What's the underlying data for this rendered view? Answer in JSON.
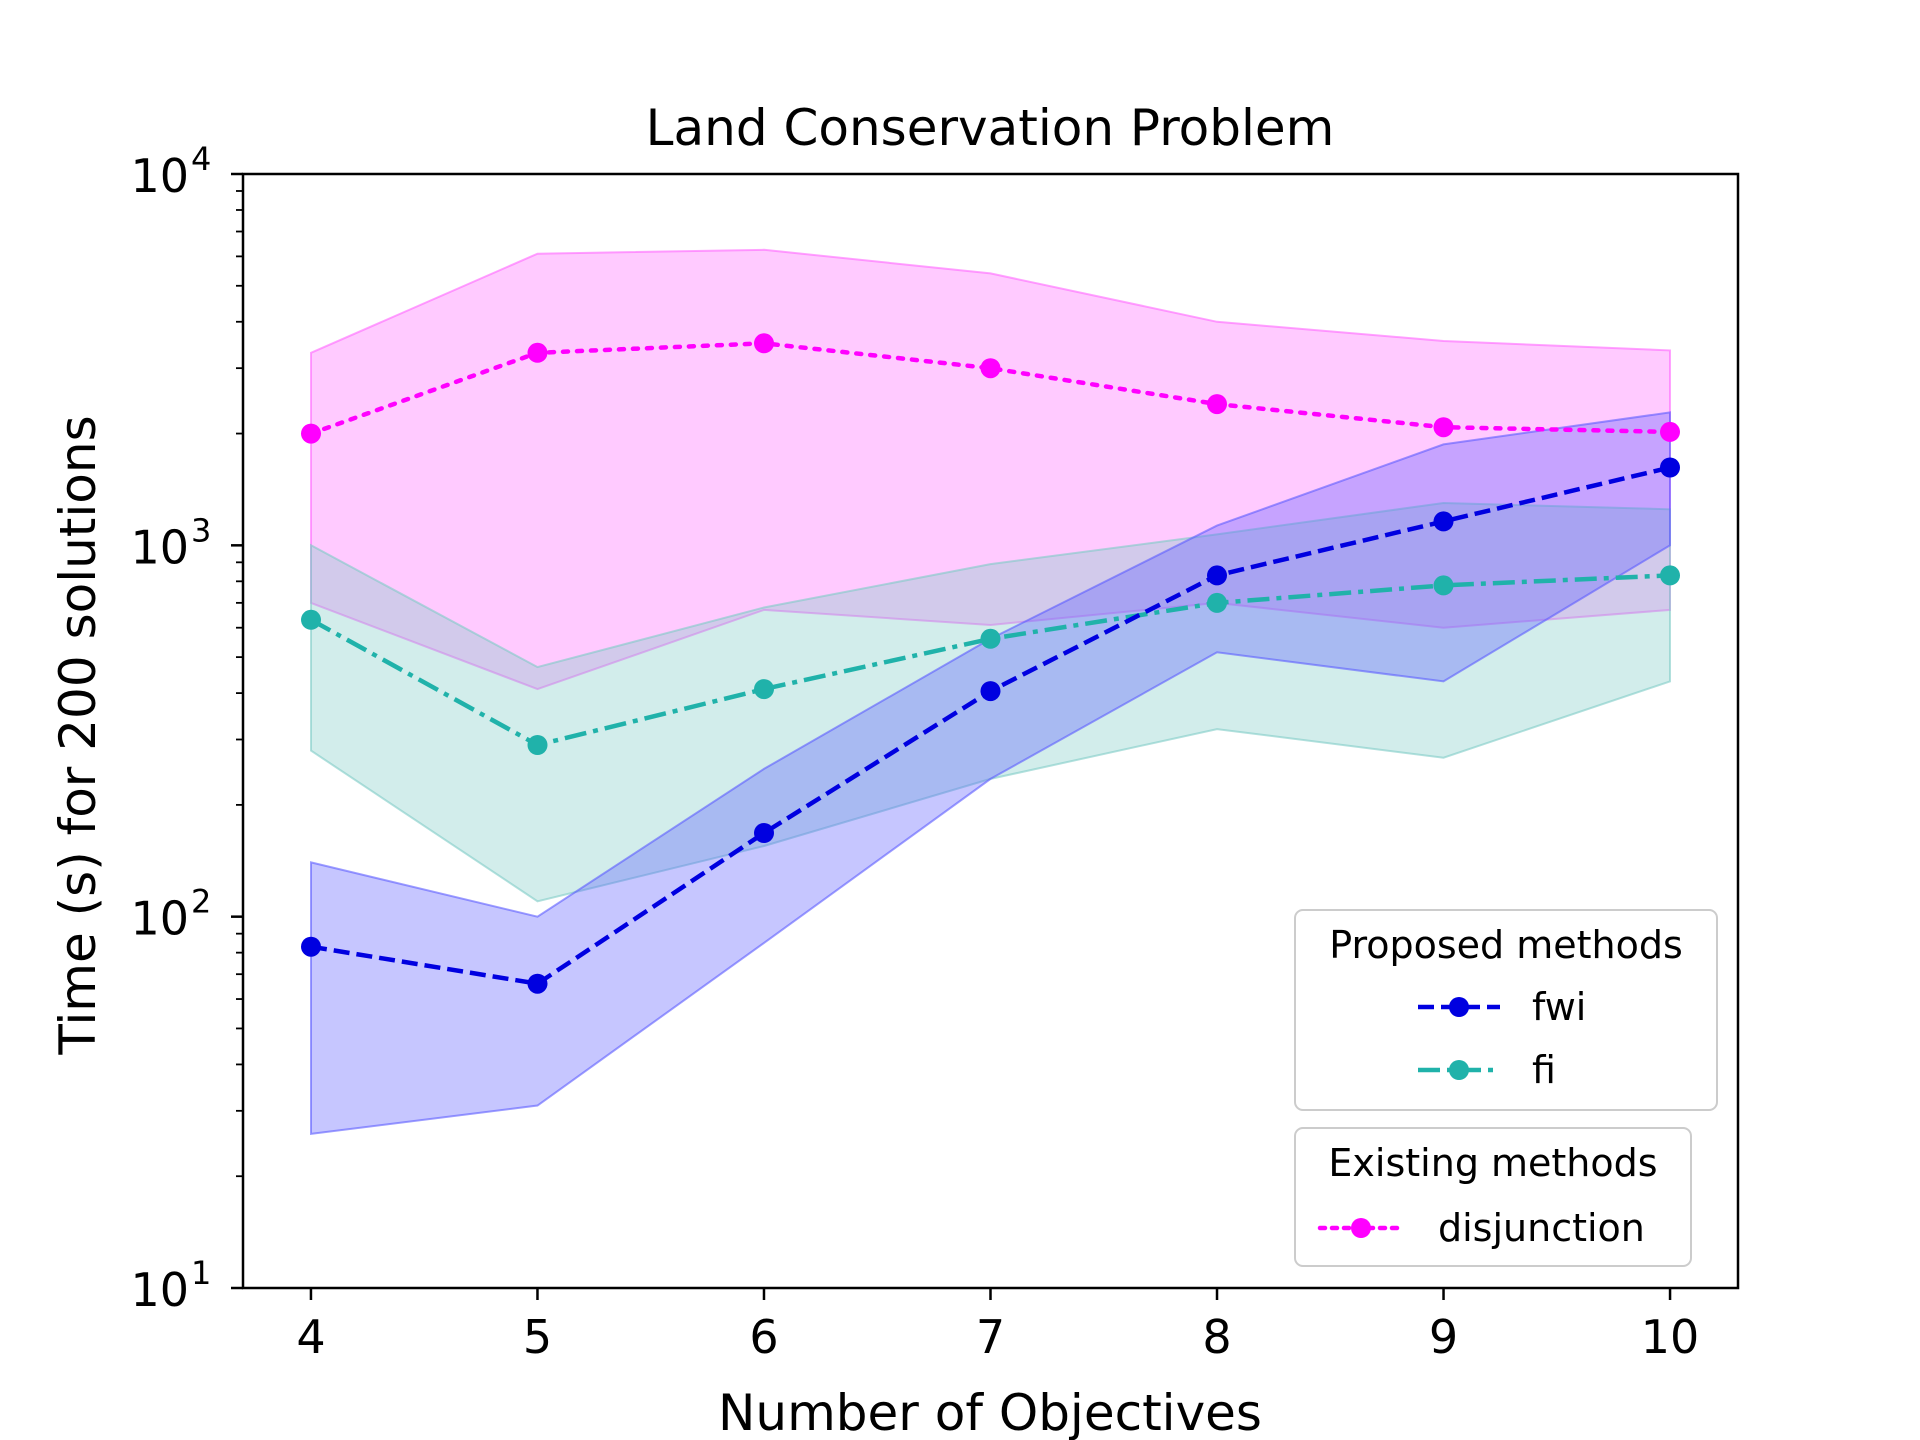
{
  "chart_data": {
    "type": "line",
    "title": "Land Conservation Problem",
    "xlabel": "Number of Objectives",
    "ylabel": "Time (s) for 200 solutions",
    "yscale": "log",
    "ylim": [
      10,
      10000
    ],
    "xlim": [
      3.7,
      10.3
    ],
    "x": [
      4,
      5,
      6,
      7,
      8,
      9,
      10
    ],
    "x_ticks": [
      {
        "value": 4,
        "label": "4"
      },
      {
        "value": 5,
        "label": "5"
      },
      {
        "value": 6,
        "label": "6"
      },
      {
        "value": 7,
        "label": "7"
      },
      {
        "value": 8,
        "label": "8"
      },
      {
        "value": 9,
        "label": "9"
      },
      {
        "value": 10,
        "label": "10"
      }
    ],
    "y_ticks": [
      {
        "value": 10,
        "base": "10",
        "exp": "1"
      },
      {
        "value": 100,
        "base": "10",
        "exp": "2"
      },
      {
        "value": 1000,
        "base": "10",
        "exp": "3"
      },
      {
        "value": 10000,
        "base": "10",
        "exp": "4"
      }
    ],
    "grid": false,
    "legend": [
      {
        "title": "Proposed methods",
        "placement": "lower-right",
        "entries": [
          "fwi",
          "fi"
        ]
      },
      {
        "title": "Existing methods",
        "placement": "lower-right",
        "entries": [
          "disjunction"
        ]
      }
    ],
    "series": [
      {
        "name": "disjunction",
        "values": [
          2000,
          3300,
          3500,
          3000,
          2400,
          2080,
          2020
        ],
        "lower": [
          700,
          410,
          670,
          610,
          700,
          600,
          670
        ],
        "upper": [
          3300,
          6100,
          6250,
          5400,
          4000,
          3550,
          3350
        ],
        "color": "#ff00ff",
        "fill": "#ff66ff",
        "dash": "dotted"
      },
      {
        "name": "fi",
        "values": [
          630,
          290,
          410,
          560,
          700,
          780,
          830
        ],
        "lower": [
          280,
          110,
          155,
          235,
          320,
          268,
          430
        ],
        "upper": [
          1000,
          470,
          680,
          890,
          1070,
          1300,
          1250
        ],
        "color": "#20b2aa",
        "fill": "#7fccc6",
        "dash": "dashdot"
      },
      {
        "name": "fwi",
        "values": [
          83,
          66,
          168,
          405,
          830,
          1160,
          1620
        ],
        "lower": [
          26,
          31,
          85,
          235,
          515,
          430,
          1000
        ],
        "upper": [
          140,
          100,
          250,
          560,
          1130,
          1870,
          2280
        ],
        "color": "#0000e0",
        "fill": "#5c5cff",
        "dash": "dashed"
      }
    ]
  }
}
